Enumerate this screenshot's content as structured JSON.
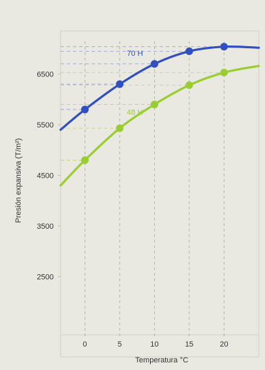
{
  "chart_data": {
    "type": "line",
    "title": "",
    "xlabel": "Temperatura °C",
    "ylabel": "Presión expansiva (T/m²)",
    "x_ticks": [
      0,
      5,
      10,
      15,
      20
    ],
    "y_ticks": [
      2500,
      3500,
      4500,
      5500,
      6500
    ],
    "xlim": [
      -3.5,
      25
    ],
    "ylim": [
      1350,
      7350
    ],
    "grid": false,
    "legend": "none",
    "series": [
      {
        "name": "70 H",
        "color": "#3050c0",
        "x": [
          0,
          5,
          10,
          15,
          20
        ],
        "y": [
          5800,
          6300,
          6700,
          6950,
          7040
        ],
        "curve_x": [
          -3.5,
          0,
          5,
          10,
          15,
          20,
          25
        ],
        "curve_y": [
          5400,
          5800,
          6300,
          6700,
          6950,
          7040,
          7020
        ]
      },
      {
        "name": "48 H",
        "color": "#9acd32",
        "x": [
          0,
          5,
          10,
          15,
          20
        ],
        "y": [
          4800,
          5430,
          5900,
          6280,
          6530
        ],
        "curve_x": [
          -3.5,
          0,
          5,
          10,
          15,
          20,
          25
        ],
        "curve_y": [
          4300,
          4800,
          5430,
          5900,
          6280,
          6530,
          6660
        ]
      }
    ]
  }
}
